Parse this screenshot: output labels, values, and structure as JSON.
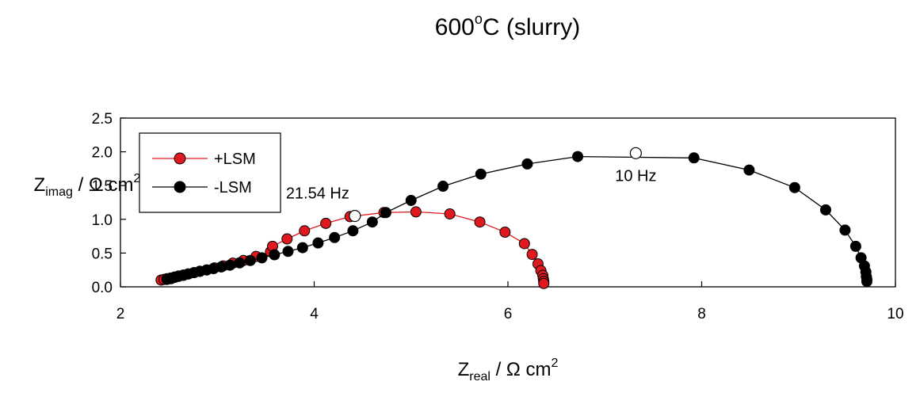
{
  "chart_data": {
    "type": "scatter",
    "title": {
      "main": "600",
      "sup": "o",
      "rest": "C (slurry)"
    },
    "xlabel": {
      "main": "Z",
      "sub": "real",
      "mid": " / Ω cm",
      "sup": "2"
    },
    "ylabel": {
      "main": "Z",
      "sub": "imag",
      "mid": " / Ω cm",
      "sup": "2"
    },
    "xlim": [
      2,
      10
    ],
    "ylim": [
      0,
      2.5
    ],
    "xticks": [
      "2",
      "4",
      "6",
      "8",
      "10"
    ],
    "yticks": [
      "0.0",
      "0.5",
      "1.0",
      "1.5",
      "2.0",
      "2.5"
    ],
    "legend_position": "top-left",
    "series": [
      {
        "name": "+LSM",
        "color": "#e0191e",
        "line_color": "#e0191e",
        "points": [
          [
            2.42,
            0.1
          ],
          [
            2.45,
            0.11
          ],
          [
            2.48,
            0.12
          ],
          [
            2.52,
            0.13
          ],
          [
            2.56,
            0.145
          ],
          [
            2.6,
            0.16
          ],
          [
            2.65,
            0.175
          ],
          [
            2.7,
            0.19
          ],
          [
            2.76,
            0.21
          ],
          [
            2.82,
            0.23
          ],
          [
            2.89,
            0.25
          ],
          [
            2.97,
            0.28
          ],
          [
            3.06,
            0.31
          ],
          [
            3.16,
            0.35
          ],
          [
            3.27,
            0.39
          ],
          [
            3.4,
            0.45
          ],
          [
            3.55,
            0.52
          ],
          [
            3.57,
            0.6
          ],
          [
            3.72,
            0.71
          ],
          [
            3.9,
            0.83
          ],
          [
            4.12,
            0.94
          ],
          [
            4.37,
            1.04
          ],
          [
            4.72,
            1.1
          ],
          [
            5.05,
            1.11
          ],
          [
            5.4,
            1.08
          ],
          [
            5.71,
            0.96
          ],
          [
            5.97,
            0.81
          ],
          [
            6.17,
            0.64
          ],
          [
            6.25,
            0.48
          ],
          [
            6.31,
            0.34
          ],
          [
            6.34,
            0.24
          ],
          [
            6.36,
            0.17
          ],
          [
            6.365,
            0.12
          ],
          [
            6.37,
            0.08
          ],
          [
            6.37,
            0.05
          ]
        ]
      },
      {
        "name": "-LSM",
        "color": "#000000",
        "line_color": "#000000",
        "points": [
          [
            2.48,
            0.11
          ],
          [
            2.52,
            0.12
          ],
          [
            2.56,
            0.14
          ],
          [
            2.6,
            0.155
          ],
          [
            2.65,
            0.17
          ],
          [
            2.7,
            0.19
          ],
          [
            2.76,
            0.21
          ],
          [
            2.82,
            0.23
          ],
          [
            2.89,
            0.25
          ],
          [
            2.96,
            0.27
          ],
          [
            3.04,
            0.295
          ],
          [
            3.13,
            0.32
          ],
          [
            3.23,
            0.355
          ],
          [
            3.34,
            0.39
          ],
          [
            3.46,
            0.43
          ],
          [
            3.59,
            0.475
          ],
          [
            3.73,
            0.525
          ],
          [
            3.88,
            0.58
          ],
          [
            4.04,
            0.65
          ],
          [
            4.21,
            0.73
          ],
          [
            4.4,
            0.83
          ],
          [
            4.6,
            0.96
          ],
          [
            4.74,
            1.1
          ],
          [
            5.0,
            1.28
          ],
          [
            5.33,
            1.49
          ],
          [
            5.72,
            1.67
          ],
          [
            6.2,
            1.82
          ],
          [
            6.72,
            1.93
          ],
          [
            7.92,
            1.91
          ],
          [
            8.49,
            1.73
          ],
          [
            8.96,
            1.47
          ],
          [
            9.28,
            1.14
          ],
          [
            9.48,
            0.84
          ],
          [
            9.59,
            0.6
          ],
          [
            9.645,
            0.43
          ],
          [
            9.68,
            0.31
          ],
          [
            9.695,
            0.22
          ],
          [
            9.7,
            0.15
          ],
          [
            9.705,
            0.11
          ],
          [
            9.705,
            0.08
          ]
        ]
      }
    ],
    "annotations": [
      {
        "text": "21.54 Hz",
        "x": 4.42,
        "y": 1.05,
        "series": "+LSM",
        "marker": "open-circle"
      },
      {
        "text": "10 Hz",
        "x": 7.32,
        "y": 1.98,
        "series": "-LSM",
        "marker": "open-circle"
      }
    ]
  }
}
